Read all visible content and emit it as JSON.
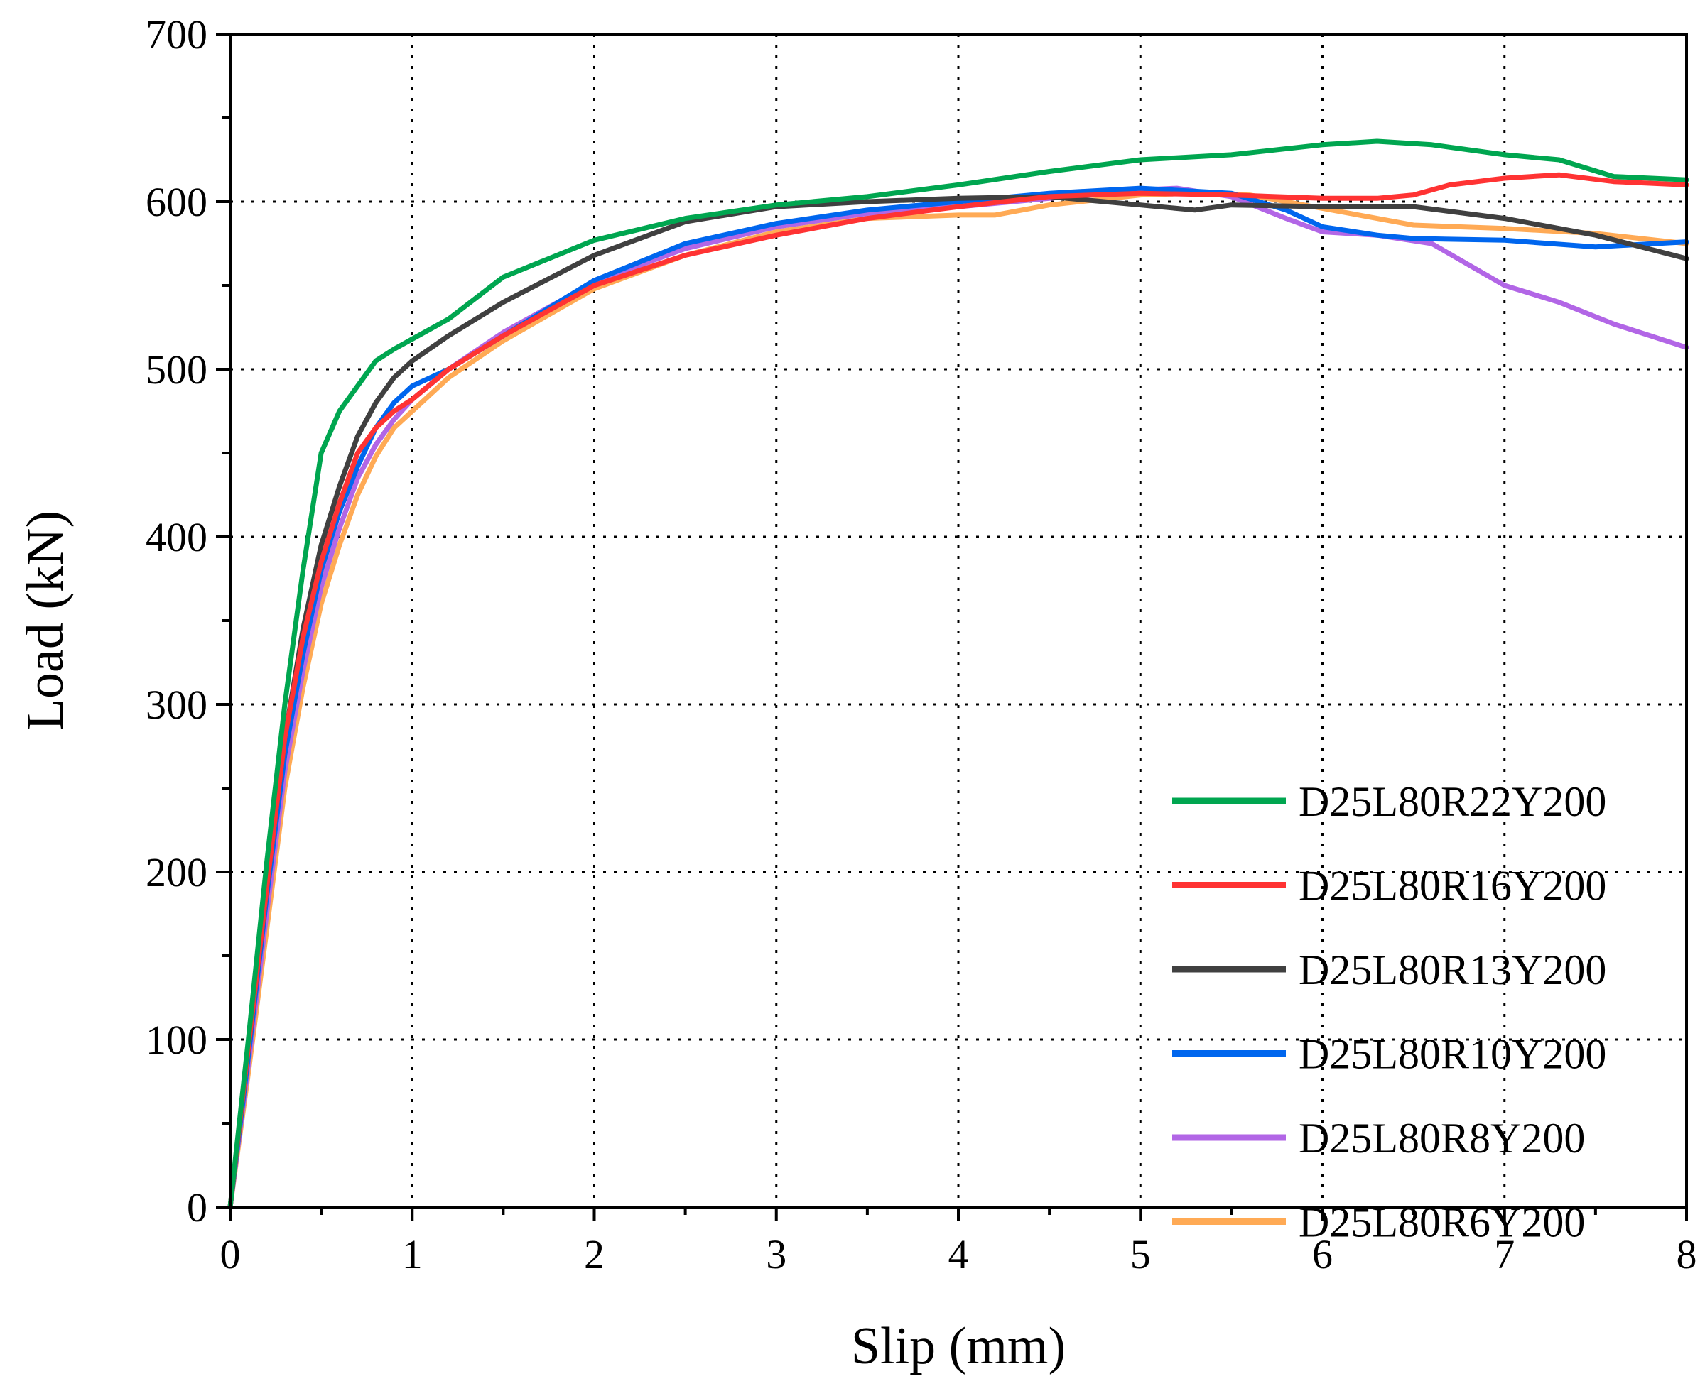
{
  "chart_data": {
    "type": "line",
    "title": "",
    "xlabel": "Slip (mm)",
    "ylabel": "Load (kN)",
    "xlim": [
      0,
      8
    ],
    "ylim": [
      0,
      700
    ],
    "xticks": [
      0,
      1,
      2,
      3,
      4,
      5,
      6,
      7,
      8
    ],
    "yticks": [
      0,
      100,
      200,
      300,
      400,
      500,
      600,
      700
    ],
    "xtick_labels": [
      "0",
      "1",
      "2",
      "3",
      "4",
      "5",
      "6",
      "7",
      "8"
    ],
    "ytick_labels": [
      "0",
      "100",
      "200",
      "300",
      "400",
      "500",
      "600",
      "700"
    ],
    "grid": true,
    "legend_position": "bottom-right",
    "series": [
      {
        "name": "D25L80R22Y200",
        "color": "#00a650",
        "x": [
          0,
          0.1,
          0.2,
          0.3,
          0.4,
          0.5,
          0.6,
          0.7,
          0.8,
          0.9,
          1.0,
          1.2,
          1.5,
          2.0,
          2.5,
          3.0,
          3.5,
          4.0,
          4.5,
          5.0,
          5.5,
          6.0,
          6.3,
          6.6,
          7.0,
          7.3,
          7.6,
          8.0
        ],
        "y": [
          0,
          100,
          205,
          300,
          380,
          450,
          475,
          490,
          505,
          512,
          518,
          530,
          555,
          577,
          590,
          598,
          603,
          610,
          618,
          625,
          628,
          634,
          636,
          634,
          628,
          625,
          615,
          613
        ]
      },
      {
        "name": "D25L80R16Y200",
        "color": "#ff3333",
        "x": [
          0,
          0.1,
          0.2,
          0.3,
          0.4,
          0.5,
          0.6,
          0.7,
          0.8,
          0.9,
          1.0,
          1.2,
          1.5,
          2.0,
          2.5,
          3.0,
          3.5,
          4.0,
          4.5,
          5.0,
          5.5,
          6.0,
          6.3,
          6.5,
          6.7,
          7.0,
          7.3,
          7.6,
          8.0
        ],
        "y": [
          0,
          95,
          190,
          280,
          340,
          385,
          420,
          450,
          465,
          475,
          482,
          500,
          520,
          550,
          568,
          580,
          590,
          597,
          603,
          605,
          604,
          602,
          602,
          604,
          610,
          614,
          616,
          612,
          610
        ]
      },
      {
        "name": "D25L80R13Y200",
        "color": "#404040",
        "x": [
          0,
          0.1,
          0.2,
          0.3,
          0.4,
          0.5,
          0.6,
          0.7,
          0.8,
          0.9,
          1.0,
          1.2,
          1.5,
          2.0,
          2.5,
          3.0,
          3.5,
          4.0,
          4.5,
          5.0,
          5.3,
          5.5,
          6.0,
          6.5,
          7.0,
          7.5,
          8.0
        ],
        "y": [
          0,
          95,
          190,
          280,
          345,
          395,
          430,
          460,
          480,
          495,
          505,
          520,
          540,
          568,
          588,
          597,
          600,
          602,
          603,
          598,
          595,
          598,
          597,
          597,
          590,
          580,
          566
        ]
      },
      {
        "name": "D25L80R10Y200",
        "color": "#0066ee",
        "x": [
          0,
          0.1,
          0.2,
          0.3,
          0.4,
          0.5,
          0.6,
          0.7,
          0.8,
          0.9,
          1.0,
          1.2,
          1.5,
          2.0,
          2.5,
          3.0,
          3.5,
          4.0,
          4.5,
          5.0,
          5.5,
          5.8,
          6.0,
          6.3,
          6.5,
          7.0,
          7.5,
          8.0
        ],
        "y": [
          0,
          90,
          185,
          270,
          330,
          380,
          415,
          442,
          465,
          480,
          490,
          500,
          520,
          553,
          575,
          587,
          595,
          600,
          605,
          608,
          605,
          595,
          585,
          580,
          578,
          577,
          573,
          576
        ]
      },
      {
        "name": "D25L80R8Y200",
        "color": "#b266e6",
        "x": [
          0,
          0.1,
          0.2,
          0.3,
          0.4,
          0.5,
          0.6,
          0.7,
          0.8,
          0.9,
          1.0,
          1.2,
          1.5,
          2.0,
          2.5,
          3.0,
          3.5,
          4.0,
          4.5,
          5.0,
          5.2,
          5.5,
          5.8,
          6.0,
          6.3,
          6.6,
          7.0,
          7.3,
          7.6,
          8.0
        ],
        "y": [
          0,
          85,
          175,
          260,
          320,
          370,
          405,
          435,
          455,
          470,
          482,
          500,
          522,
          552,
          572,
          585,
          593,
          597,
          602,
          607,
          608,
          603,
          590,
          582,
          580,
          575,
          550,
          540,
          527,
          513
        ]
      },
      {
        "name": "D25L80R6Y200",
        "color": "#ffaa55",
        "x": [
          0,
          0.1,
          0.2,
          0.3,
          0.4,
          0.5,
          0.6,
          0.7,
          0.8,
          0.9,
          1.0,
          1.2,
          1.5,
          2.0,
          2.5,
          3.0,
          3.5,
          4.0,
          4.2,
          4.5,
          5.0,
          5.3,
          5.6,
          6.0,
          6.5,
          7.0,
          7.5,
          8.0
        ],
        "y": [
          0,
          80,
          165,
          250,
          310,
          360,
          395,
          425,
          448,
          465,
          475,
          495,
          517,
          548,
          568,
          582,
          590,
          592,
          592,
          598,
          604,
          605,
          604,
          596,
          586,
          584,
          581,
          575
        ]
      }
    ]
  }
}
